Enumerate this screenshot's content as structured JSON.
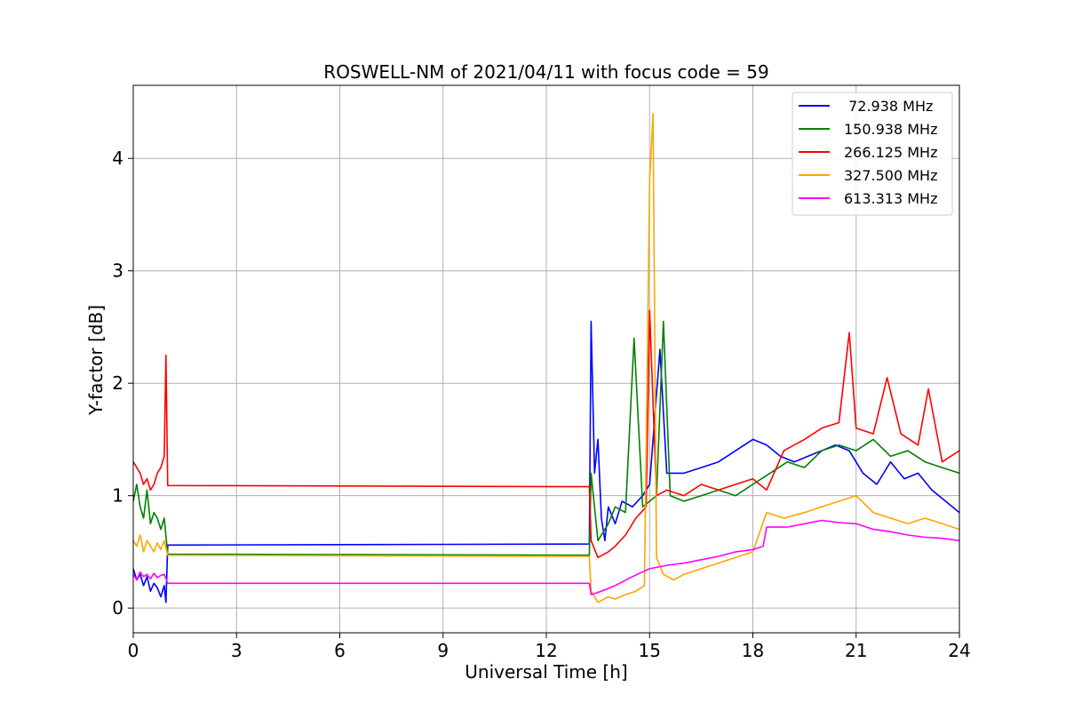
{
  "chart_data": {
    "type": "line",
    "title": "ROSWELL-NM of 2021/04/11 with focus code = 59",
    "xlabel": "Universal Time [h]",
    "ylabel": "Y-factor [dB]",
    "xlim": [
      0,
      24
    ],
    "ylim": [
      -0.22,
      4.65
    ],
    "xticks": [
      0,
      3,
      6,
      9,
      12,
      15,
      18,
      21,
      24
    ],
    "yticks": [
      0,
      1,
      2,
      3,
      4
    ],
    "grid": true,
    "legend_position": "top-right",
    "series": [
      {
        "name": " 72.938 MHz",
        "color": "#0000ff",
        "x": [
          0,
          0.1,
          0.2,
          0.3,
          0.4,
          0.5,
          0.6,
          0.7,
          0.8,
          0.9,
          0.95,
          1.0,
          13.25,
          13.3,
          13.4,
          13.5,
          13.6,
          13.7,
          13.8,
          14.0,
          14.2,
          14.5,
          14.8,
          15.0,
          15.3,
          15.5,
          16.0,
          16.5,
          17.0,
          17.5,
          18.0,
          18.4,
          18.8,
          19.2,
          19.6,
          20.0,
          20.4,
          20.8,
          21.2,
          21.6,
          22.0,
          22.4,
          22.8,
          23.2,
          23.6,
          24.0
        ],
        "y": [
          0.35,
          0.25,
          0.3,
          0.2,
          0.28,
          0.15,
          0.22,
          0.18,
          0.1,
          0.2,
          0.05,
          0.56,
          0.57,
          2.55,
          1.2,
          1.5,
          0.8,
          0.6,
          0.9,
          0.75,
          0.95,
          0.9,
          1.0,
          1.1,
          2.3,
          1.2,
          1.2,
          1.25,
          1.3,
          1.4,
          1.5,
          1.45,
          1.35,
          1.3,
          1.35,
          1.4,
          1.45,
          1.4,
          1.2,
          1.1,
          1.3,
          1.15,
          1.2,
          1.05,
          0.95,
          0.85
        ]
      },
      {
        "name": "150.938 MHz",
        "color": "#008000",
        "x": [
          0,
          0.1,
          0.2,
          0.3,
          0.4,
          0.5,
          0.6,
          0.7,
          0.8,
          0.9,
          1.0,
          13.25,
          13.3,
          13.5,
          13.8,
          14.0,
          14.3,
          14.55,
          14.8,
          15.0,
          15.2,
          15.4,
          15.6,
          16.0,
          16.5,
          17.0,
          17.5,
          18.0,
          18.5,
          19.0,
          19.5,
          20.0,
          20.5,
          21.0,
          21.5,
          22.0,
          22.5,
          23.0,
          23.5,
          24.0
        ],
        "y": [
          0.95,
          1.1,
          0.9,
          0.8,
          1.05,
          0.75,
          0.85,
          0.8,
          0.7,
          0.8,
          0.48,
          0.47,
          1.2,
          0.6,
          0.75,
          0.9,
          0.85,
          2.4,
          0.9,
          0.95,
          1.0,
          2.55,
          1.0,
          0.95,
          1.0,
          1.05,
          1.0,
          1.1,
          1.2,
          1.3,
          1.25,
          1.4,
          1.45,
          1.4,
          1.5,
          1.35,
          1.4,
          1.3,
          1.25,
          1.2
        ]
      },
      {
        "name": "266.125 MHz",
        "color": "#ff0000",
        "x": [
          0,
          0.1,
          0.2,
          0.3,
          0.4,
          0.5,
          0.6,
          0.7,
          0.8,
          0.9,
          0.95,
          1.0,
          13.25,
          13.3,
          13.5,
          13.8,
          14.0,
          14.3,
          14.6,
          14.9,
          15.0,
          15.2,
          15.5,
          16.0,
          16.5,
          17.0,
          17.5,
          18.0,
          18.4,
          18.9,
          19.5,
          20.0,
          20.5,
          20.8,
          21.0,
          21.5,
          21.9,
          22.3,
          22.8,
          23.1,
          23.5,
          24.0
        ],
        "y": [
          1.3,
          1.25,
          1.2,
          1.1,
          1.15,
          1.05,
          1.1,
          1.2,
          1.25,
          1.35,
          2.25,
          1.09,
          1.08,
          0.6,
          0.45,
          0.5,
          0.55,
          0.65,
          0.8,
          0.9,
          2.65,
          1.0,
          1.05,
          1.0,
          1.1,
          1.05,
          1.1,
          1.15,
          1.05,
          1.4,
          1.5,
          1.6,
          1.65,
          2.45,
          1.6,
          1.55,
          2.05,
          1.55,
          1.45,
          1.95,
          1.3,
          1.4
        ]
      },
      {
        "name": "327.500 MHz",
        "color": "#ffa500",
        "x": [
          0,
          0.1,
          0.2,
          0.3,
          0.4,
          0.5,
          0.6,
          0.7,
          0.8,
          0.9,
          1.0,
          13.25,
          13.3,
          13.5,
          13.8,
          14.0,
          14.3,
          14.6,
          14.85,
          15.0,
          15.1,
          15.2,
          15.4,
          15.7,
          16.0,
          16.5,
          17.0,
          17.5,
          18.0,
          18.4,
          18.9,
          19.5,
          20.0,
          20.5,
          21.0,
          21.5,
          22.0,
          22.5,
          23.0,
          23.5,
          24.0
        ],
        "y": [
          0.6,
          0.55,
          0.65,
          0.5,
          0.6,
          0.55,
          0.5,
          0.58,
          0.52,
          0.6,
          0.47,
          0.46,
          0.15,
          0.05,
          0.1,
          0.08,
          0.12,
          0.15,
          0.2,
          3.8,
          4.4,
          0.45,
          0.3,
          0.25,
          0.3,
          0.35,
          0.4,
          0.45,
          0.5,
          0.85,
          0.8,
          0.85,
          0.9,
          0.95,
          1.0,
          0.85,
          0.8,
          0.75,
          0.8,
          0.75,
          0.7
        ]
      },
      {
        "name": "613.313 MHz",
        "color": "#ff00ff",
        "x": [
          0,
          0.1,
          0.2,
          0.3,
          0.4,
          0.5,
          0.6,
          0.7,
          0.8,
          0.9,
          1.0,
          13.25,
          13.3,
          13.6,
          14.0,
          14.5,
          15.0,
          15.5,
          16.0,
          16.5,
          17.0,
          17.5,
          18.0,
          18.3,
          18.4,
          19.0,
          19.5,
          20.0,
          20.5,
          21.0,
          21.5,
          22.0,
          22.5,
          23.0,
          23.5,
          24.0
        ],
        "y": [
          0.3,
          0.25,
          0.32,
          0.28,
          0.3,
          0.26,
          0.31,
          0.27,
          0.29,
          0.3,
          0.22,
          0.22,
          0.12,
          0.15,
          0.2,
          0.28,
          0.35,
          0.38,
          0.4,
          0.43,
          0.46,
          0.5,
          0.52,
          0.55,
          0.72,
          0.72,
          0.75,
          0.78,
          0.76,
          0.75,
          0.7,
          0.68,
          0.65,
          0.63,
          0.62,
          0.6
        ]
      }
    ]
  }
}
